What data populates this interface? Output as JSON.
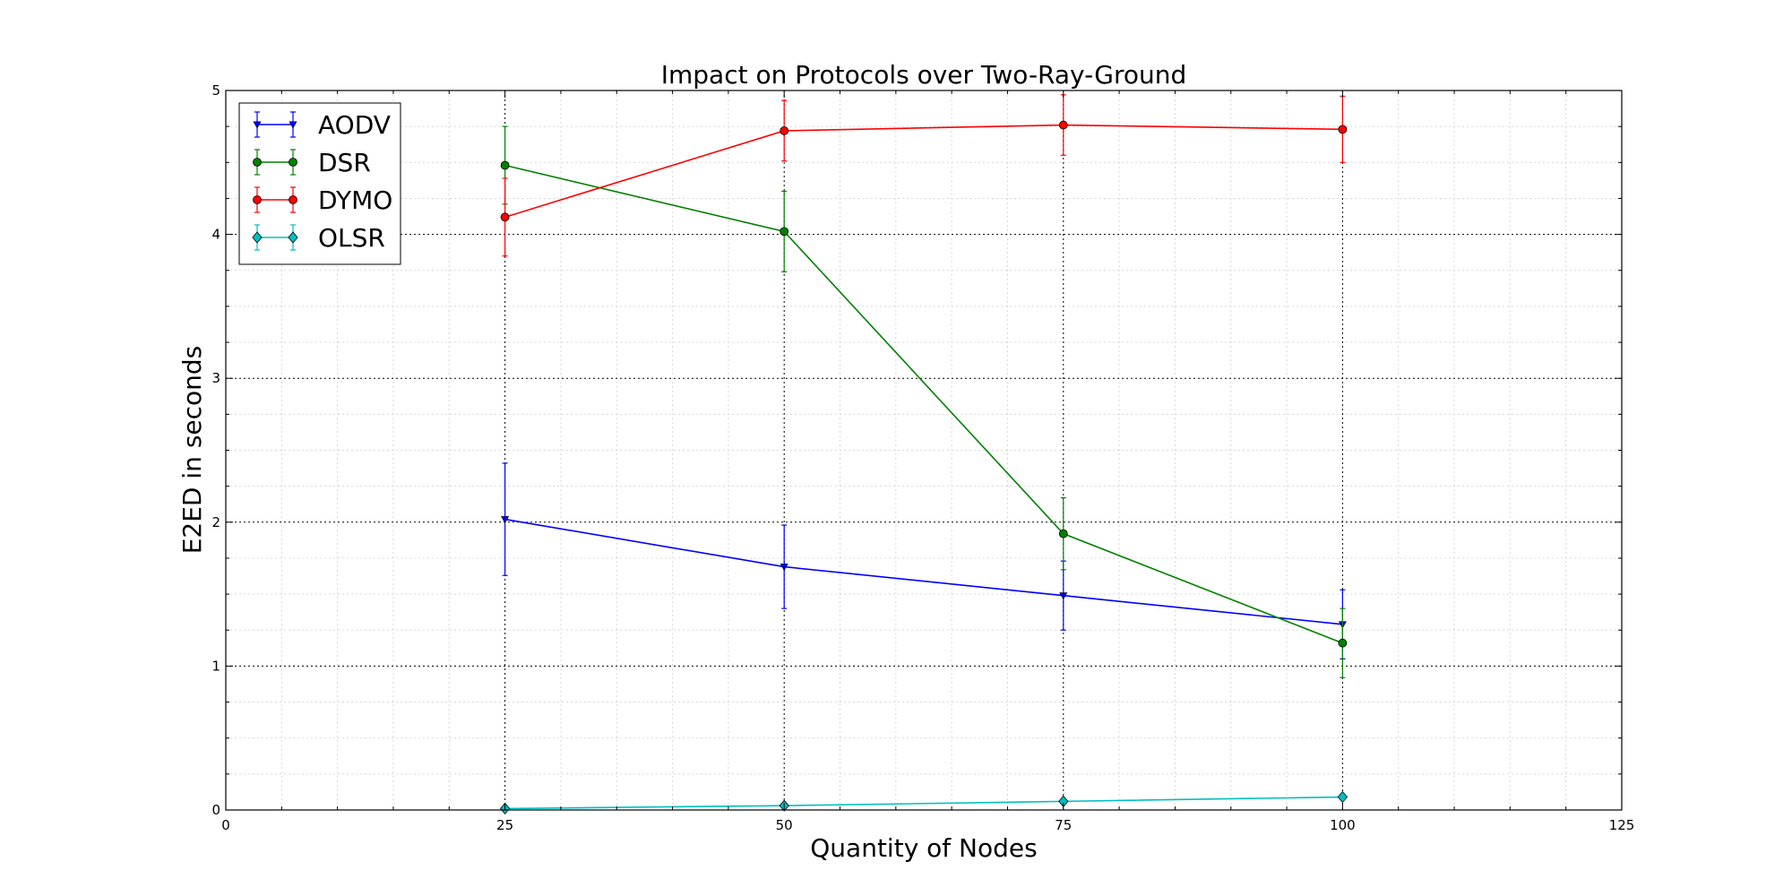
{
  "chart_data": {
    "type": "line",
    "title": "Impact on Protocols over Two-Ray-Ground",
    "xlabel": "Quantity of Nodes",
    "ylabel": "E2ED in seconds",
    "xlim": [
      0,
      125
    ],
    "ylim": [
      0,
      5
    ],
    "x_ticks": [
      "0",
      "25",
      "50",
      "75",
      "100",
      "125"
    ],
    "y_ticks": [
      "0",
      "1",
      "2",
      "3",
      "4",
      "5"
    ],
    "x_major_step": 25,
    "x_minor_step": 5,
    "y_major_step": 1,
    "y_minor_step": 0.25,
    "grid": true,
    "legend_position": "top-left",
    "x": [
      25,
      50,
      75,
      100
    ],
    "series": [
      {
        "name": "AODV",
        "color": "#0000ff",
        "marker": "triangle-down",
        "values": [
          2.02,
          1.69,
          1.49,
          1.29
        ],
        "errors": [
          0.39,
          0.29,
          0.24,
          0.24
        ]
      },
      {
        "name": "DSR",
        "color": "#008000",
        "marker": "circle",
        "values": [
          4.48,
          4.02,
          1.92,
          1.16
        ],
        "errors": [
          0.27,
          0.28,
          0.25,
          0.24
        ]
      },
      {
        "name": "DYMO",
        "color": "#ff0000",
        "marker": "circle",
        "values": [
          4.12,
          4.72,
          4.76,
          4.73
        ],
        "errors": [
          0.27,
          0.21,
          0.21,
          0.23
        ]
      },
      {
        "name": "OLSR",
        "color": "#00bfbf",
        "marker": "diamond",
        "values": [
          0.01,
          0.03,
          0.06,
          0.09
        ],
        "errors": [
          0.0,
          0.0,
          0.0,
          0.0
        ]
      }
    ]
  }
}
